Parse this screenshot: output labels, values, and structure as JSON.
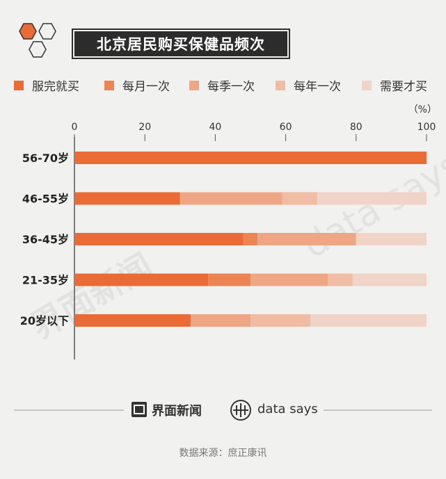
{
  "header": {
    "title": "北京居民购买保健品频次"
  },
  "legend": [
    {
      "label": "服完就买",
      "color": "#ea6b35"
    },
    {
      "label": "每月一次",
      "color": "#ec8553"
    },
    {
      "label": "每季一次",
      "color": "#eea684"
    },
    {
      "label": "每年一次",
      "color": "#f0bca4"
    },
    {
      "label": "需要才买",
      "color": "#f1d4c8"
    }
  ],
  "chart_data": {
    "type": "bar",
    "orientation": "horizontal",
    "stacked": true,
    "unit_label": "（%）",
    "xlim": [
      0,
      100
    ],
    "x_ticks": [
      "0",
      "20",
      "40",
      "60",
      "80",
      "100"
    ],
    "categories": [
      "56-70岁",
      "46-55岁",
      "36-45岁",
      "21-35岁",
      "20岁以下"
    ],
    "series": [
      {
        "name": "服完就买",
        "color": "#ea6b35",
        "values": [
          100,
          30,
          48,
          38,
          33
        ]
      },
      {
        "name": "每月一次",
        "color": "#ec8553",
        "values": [
          0,
          0,
          4,
          12,
          0
        ]
      },
      {
        "name": "每季一次",
        "color": "#eea684",
        "values": [
          0,
          29,
          28,
          22,
          17
        ]
      },
      {
        "name": "每年一次",
        "color": "#f0bca4",
        "values": [
          0,
          10,
          0,
          7,
          17
        ]
      },
      {
        "name": "需要才买",
        "color": "#f1d4c8",
        "values": [
          0,
          31,
          20,
          21,
          33
        ]
      }
    ]
  },
  "watermark": {
    "left_text": "界面新闻",
    "right_text": "data says"
  },
  "footer": {
    "brand_left": "界面新闻",
    "brand_right": "data says",
    "source": "数据来源：庶正康讯"
  },
  "colors": {
    "background": "#f1f1ef",
    "title_bg": "#2c2c2c",
    "axis": "#555555"
  }
}
